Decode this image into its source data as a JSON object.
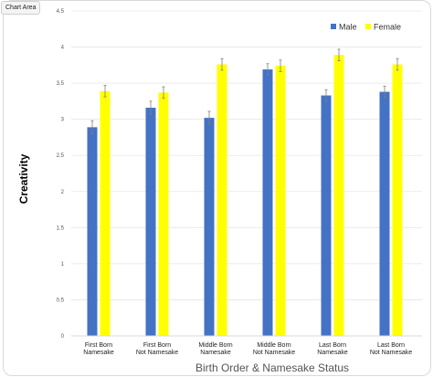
{
  "tooltip": "Chart Area",
  "chart_data": {
    "type": "bar",
    "categories": [
      [
        "First Born",
        "Namesake"
      ],
      [
        "First Born",
        "Not Namesake"
      ],
      [
        "Middle Born",
        "Namesake"
      ],
      [
        "Middle Born",
        "Not Namesake"
      ],
      [
        "Last Born",
        "Namesake"
      ],
      [
        "Last Born",
        "Not Namesake"
      ]
    ],
    "series": [
      {
        "name": "Male",
        "color": "#4472c4",
        "values": [
          2.89,
          3.16,
          3.02,
          3.69,
          3.33,
          3.38
        ],
        "errors": [
          0.09,
          0.09,
          0.09,
          0.08,
          0.08,
          0.08
        ]
      },
      {
        "name": "Female",
        "color": "#ffff00",
        "values": [
          3.39,
          3.37,
          3.76,
          3.74,
          3.89,
          3.76
        ],
        "errors": [
          0.08,
          0.08,
          0.08,
          0.08,
          0.08,
          0.08
        ]
      }
    ],
    "yticks": [
      "0",
      "0.5",
      "1",
      "1.5",
      "2",
      "2.5",
      "3",
      "3.5",
      "4",
      "4.5"
    ],
    "ylim": [
      0,
      4.5
    ],
    "ylabel": "Creativity",
    "xlabel": "Birth Order & Namesake Status",
    "legend_position": "top-right"
  }
}
